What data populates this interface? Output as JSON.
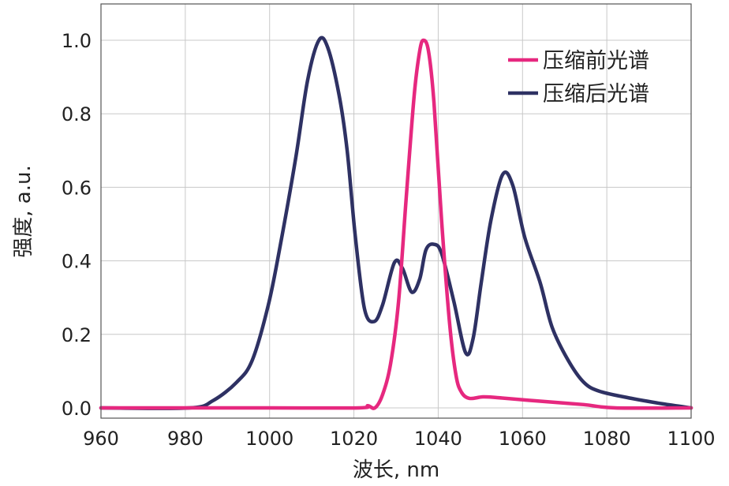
{
  "chart_data": {
    "type": "line",
    "title": "",
    "xlabel": "波长, nm",
    "ylabel": "强度, a.u.",
    "xlim": [
      960,
      1100
    ],
    "ylim": [
      -0.03,
      1.1
    ],
    "xticks": [
      960,
      980,
      1000,
      1020,
      1040,
      1060,
      1080,
      1100
    ],
    "yticks": [
      0.0,
      0.2,
      0.4,
      0.6,
      0.8,
      1.0
    ],
    "ytick_labels": [
      "0.0",
      "0.2",
      "0.4",
      "0.6",
      "0.8",
      "1.0"
    ],
    "grid": true,
    "legend_position": "top-right",
    "series": [
      {
        "name": "压缩前光谱",
        "color": "#e6287f",
        "x": [
          960,
          1000,
          1021.2,
          1023.3,
          1025,
          1026.8,
          1028.7,
          1030.6,
          1032.4,
          1034.3,
          1035.6,
          1036.5,
          1037.7,
          1039,
          1040.8,
          1042.7,
          1044.2,
          1045.5,
          1047.4,
          1050.6,
          1054,
          1063.3,
          1074.5,
          1082,
          1100
        ],
        "y": [
          0,
          0,
          0,
          0.006,
          0,
          0.036,
          0.12,
          0.29,
          0.57,
          0.85,
          0.97,
          1.0,
          0.97,
          0.83,
          0.51,
          0.23,
          0.09,
          0.043,
          0.026,
          0.03,
          0.028,
          0.019,
          0.009,
          0,
          0
        ]
      },
      {
        "name": "压缩后光谱",
        "color": "#2e3163",
        "x": [
          960,
          981,
          986.6,
          992.2,
          995.9,
          999.7,
          1002.5,
          1006.2,
          1009,
          1011.7,
          1013.8,
          1016.5,
          1018.4,
          1020.3,
          1022.5,
          1024.8,
          1026.8,
          1029.6,
          1031.5,
          1033.7,
          1035.6,
          1037.1,
          1039,
          1040.8,
          1043.7,
          1046.5,
          1048.3,
          1050.2,
          1052.5,
          1055.3,
          1057.7,
          1060.5,
          1064.2,
          1067,
          1070.8,
          1074.5,
          1078.3,
          1085.8,
          1093.3,
          1100
        ],
        "y": [
          0,
          0,
          0.02,
          0.07,
          0.13,
          0.28,
          0.44,
          0.68,
          0.89,
          1.0,
          0.98,
          0.85,
          0.7,
          0.47,
          0.27,
          0.235,
          0.28,
          0.395,
          0.38,
          0.315,
          0.35,
          0.43,
          0.445,
          0.42,
          0.29,
          0.15,
          0.19,
          0.34,
          0.51,
          0.635,
          0.605,
          0.465,
          0.34,
          0.22,
          0.13,
          0.07,
          0.045,
          0.026,
          0.011,
          0
        ]
      }
    ]
  }
}
